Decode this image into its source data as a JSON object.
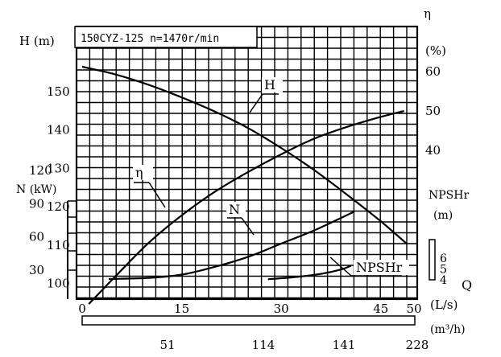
{
  "chart_data": {
    "type": "line",
    "title": "150CYZ-125 n=1470r/min",
    "x": {
      "label": "Q",
      "unit": "(L/s)",
      "range": [
        0,
        50
      ],
      "ticks": [
        "0",
        "15",
        "30",
        "45",
        "50"
      ],
      "secondary_unit": "(m³/h)",
      "secondary_ticks": [
        "51",
        "114",
        "141",
        "228"
      ]
    },
    "axes": {
      "H": {
        "label": "H (m)",
        "ticks": [
          "150",
          "140",
          "130",
          "120",
          "110",
          "100"
        ],
        "range": [
          90,
          160
        ]
      },
      "N": {
        "label": "N (kW)",
        "ticks": [
          "120",
          "90",
          "60",
          "30"
        ],
        "range": [
          0,
          120
        ]
      },
      "eta": {
        "label": "η",
        "unit": "(%)",
        "ticks": [
          "60",
          "50",
          "40"
        ],
        "range": [
          0,
          60
        ]
      },
      "NPSHr": {
        "label": "NPSHr",
        "unit": "(m)",
        "ticks": [
          "6",
          "5",
          "4"
        ],
        "range": [
          4,
          6
        ]
      }
    },
    "series": [
      {
        "name": "H",
        "axis": "H",
        "points": [
          [
            0,
            156.5
          ],
          [
            5,
            154.5
          ],
          [
            10,
            151.8
          ],
          [
            15,
            148.5
          ],
          [
            20,
            144.8
          ],
          [
            25,
            140.5
          ],
          [
            30,
            135.3
          ],
          [
            35,
            129.5
          ],
          [
            40,
            123
          ],
          [
            45,
            116.2
          ],
          [
            49,
            110.2
          ]
        ]
      },
      {
        "name": "η",
        "axis": "eta",
        "points": [
          [
            1,
            1
          ],
          [
            5,
            8
          ],
          [
            10,
            16.5
          ],
          [
            15,
            23.5
          ],
          [
            20,
            29.5
          ],
          [
            25,
            34.5
          ],
          [
            30,
            39
          ],
          [
            35,
            43
          ],
          [
            40,
            46
          ],
          [
            45,
            48.5
          ],
          [
            48.5,
            50
          ]
        ]
      },
      {
        "name": "N",
        "axis": "N",
        "points": [
          [
            4,
            22
          ],
          [
            10,
            23
          ],
          [
            15,
            26
          ],
          [
            20,
            33
          ],
          [
            25,
            42
          ],
          [
            30,
            54
          ],
          [
            35,
            66
          ],
          [
            40,
            80
          ],
          [
            41,
            83
          ]
        ]
      },
      {
        "name": "NPSHr",
        "axis": "NPSHr",
        "points": [
          [
            28,
            4.05
          ],
          [
            32,
            4.25
          ],
          [
            36,
            4.55
          ],
          [
            39,
            4.95
          ],
          [
            40.5,
            5.3
          ]
        ]
      }
    ],
    "grid": true
  }
}
